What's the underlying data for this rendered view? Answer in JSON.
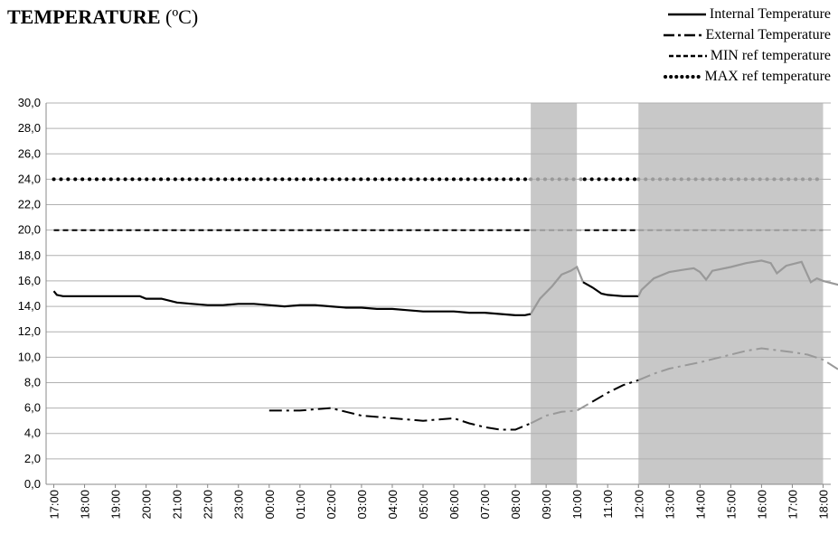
{
  "title": {
    "main": "TEMPERATURE",
    "unit": "(ºC)"
  },
  "chart_data": {
    "type": "line",
    "title": "TEMPERATURE (ºC)",
    "ylim": [
      0,
      30
    ],
    "yticks": [
      "0,0",
      "2,0",
      "4,0",
      "6,0",
      "8,0",
      "10,0",
      "12,0",
      "14,0",
      "16,0",
      "18,0",
      "20,0",
      "22,0",
      "24,0",
      "26,0",
      "28,0",
      "30,0"
    ],
    "xticks": [
      "17:00",
      "18:00",
      "19:00",
      "20:00",
      "21:00",
      "22:00",
      "23:00",
      "00:00",
      "01:00",
      "02:00",
      "03:00",
      "04:00",
      "05:00",
      "06:00",
      "07:00",
      "08:00",
      "09:00",
      "10:00",
      "11:00",
      "12:00",
      "13:00",
      "14:00",
      "15:00",
      "16:00",
      "17:00",
      "18:00"
    ],
    "grid": true,
    "legend_position": "top-right",
    "shaded_periods": [
      {
        "start_hours": 15.5,
        "end_hours": 17.0
      },
      {
        "start_hours": 19.0,
        "end_hours": 25.0
      }
    ],
    "series": [
      {
        "name": "Internal Temperature",
        "style": "solid",
        "points": [
          [
            0.0,
            15.2
          ],
          [
            0.1,
            14.9
          ],
          [
            0.3,
            14.8
          ],
          [
            1,
            14.8
          ],
          [
            2,
            14.8
          ],
          [
            2.8,
            14.8
          ],
          [
            3,
            14.6
          ],
          [
            3.5,
            14.6
          ],
          [
            4,
            14.3
          ],
          [
            4.5,
            14.2
          ],
          [
            5,
            14.1
          ],
          [
            5.5,
            14.1
          ],
          [
            6,
            14.2
          ],
          [
            6.5,
            14.2
          ],
          [
            7,
            14.1
          ],
          [
            7.5,
            14.0
          ],
          [
            8,
            14.1
          ],
          [
            8.5,
            14.1
          ],
          [
            9,
            14.0
          ],
          [
            9.5,
            13.9
          ],
          [
            10,
            13.9
          ],
          [
            10.5,
            13.8
          ],
          [
            11,
            13.8
          ],
          [
            11.5,
            13.7
          ],
          [
            12,
            13.6
          ],
          [
            12.5,
            13.6
          ],
          [
            13,
            13.6
          ],
          [
            13.5,
            13.5
          ],
          [
            14,
            13.5
          ],
          [
            14.5,
            13.4
          ],
          [
            15,
            13.3
          ],
          [
            15.3,
            13.3
          ],
          [
            15.5,
            13.4
          ],
          [
            15.8,
            14.6
          ],
          [
            16.2,
            15.6
          ],
          [
            16.5,
            16.5
          ],
          [
            16.8,
            16.8
          ],
          [
            17.0,
            17.1
          ],
          [
            17.2,
            15.9
          ],
          [
            17.5,
            15.5
          ],
          [
            17.8,
            15.0
          ],
          [
            18,
            14.9
          ],
          [
            18.5,
            14.8
          ],
          [
            19,
            14.8
          ],
          [
            19.1,
            15.3
          ],
          [
            19.5,
            16.2
          ],
          [
            20,
            16.7
          ],
          [
            20.5,
            16.9
          ],
          [
            20.8,
            17.0
          ],
          [
            21,
            16.7
          ],
          [
            21.2,
            16.1
          ],
          [
            21.4,
            16.8
          ],
          [
            22,
            17.1
          ],
          [
            22.5,
            17.4
          ],
          [
            23,
            17.6
          ],
          [
            23.3,
            17.4
          ],
          [
            23.5,
            16.6
          ],
          [
            23.8,
            17.2
          ],
          [
            24.3,
            17.5
          ],
          [
            24.6,
            15.9
          ],
          [
            24.8,
            16.2
          ],
          [
            25,
            16.0
          ],
          [
            25.5,
            15.7
          ],
          [
            25.9,
            15.6
          ]
        ]
      },
      {
        "name": "External Temperature",
        "style": "dash-dot",
        "points": [
          [
            7.0,
            5.8
          ],
          [
            8.0,
            5.8
          ],
          [
            8.5,
            5.9
          ],
          [
            9.0,
            6.0
          ],
          [
            9.5,
            5.7
          ],
          [
            10,
            5.4
          ],
          [
            10.5,
            5.3
          ],
          [
            11,
            5.2
          ],
          [
            11.5,
            5.1
          ],
          [
            12,
            5.0
          ],
          [
            12.5,
            5.1
          ],
          [
            13,
            5.2
          ],
          [
            13.5,
            4.8
          ],
          [
            14,
            4.5
          ],
          [
            14.5,
            4.3
          ],
          [
            15,
            4.3
          ],
          [
            15.5,
            4.8
          ],
          [
            16,
            5.4
          ],
          [
            16.5,
            5.7
          ],
          [
            17,
            5.8
          ],
          [
            17.5,
            6.5
          ],
          [
            18,
            7.2
          ],
          [
            18.5,
            7.8
          ],
          [
            19,
            8.2
          ],
          [
            19.5,
            8.7
          ],
          [
            20,
            9.1
          ],
          [
            21,
            9.6
          ],
          [
            22,
            10.2
          ],
          [
            22.5,
            10.5
          ],
          [
            23,
            10.7
          ],
          [
            24,
            10.4
          ],
          [
            24.5,
            10.2
          ],
          [
            25,
            9.8
          ],
          [
            25.9,
            8.4
          ]
        ]
      },
      {
        "name": "MIN ref temperature",
        "style": "dashed",
        "constant": 20.0
      },
      {
        "name": "MAX ref temperature",
        "style": "dotted",
        "constant": 24.0
      }
    ]
  },
  "colors": {
    "line": "#000000",
    "shade": "#c8c8c8",
    "shaded_line": "#999999",
    "grid": "#b0b0b0"
  }
}
